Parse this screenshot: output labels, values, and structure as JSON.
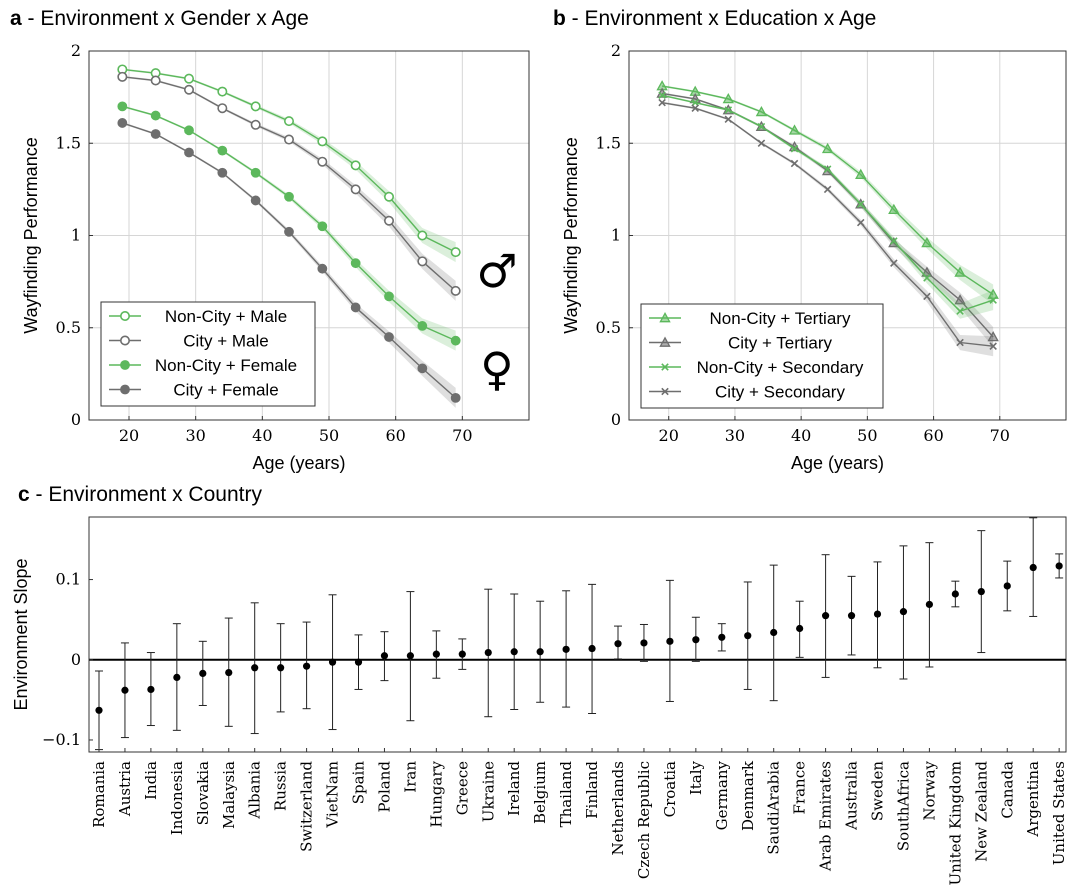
{
  "chart_data": [
    {
      "type": "line",
      "panel_letter": "a",
      "title": "Environment x Gender x Age",
      "xlabel": "Age (years)",
      "ylabel": "Wayfinding Performance",
      "xlim": [
        14,
        80
      ],
      "ylim": [
        0,
        2
      ],
      "xticks": [
        20,
        30,
        40,
        50,
        60,
        70
      ],
      "yticks": [
        0,
        0.5,
        1,
        1.5,
        2
      ],
      "ytick_labels": [
        "0",
        "0.5",
        "1",
        "1.5",
        "2"
      ],
      "grid": true,
      "legend_position": "bottom-left",
      "symbols": [
        "♂",
        "♀"
      ],
      "x": [
        19,
        24,
        29,
        34,
        39,
        44,
        49,
        54,
        59,
        64,
        69
      ],
      "series": [
        {
          "name": "Non-City + Male",
          "color": "#5cb85c",
          "marker": "open-circle",
          "values": [
            1.9,
            1.88,
            1.85,
            1.78,
            1.7,
            1.62,
            1.51,
            1.38,
            1.21,
            1.0,
            0.91
          ]
        },
        {
          "name": "City + Male",
          "color": "#6e6e6e",
          "marker": "open-circle",
          "values": [
            1.86,
            1.84,
            1.79,
            1.69,
            1.6,
            1.52,
            1.4,
            1.25,
            1.08,
            0.86,
            0.7
          ]
        },
        {
          "name": "Non-City + Female",
          "color": "#5cb85c",
          "marker": "filled-circle",
          "values": [
            1.7,
            1.65,
            1.57,
            1.46,
            1.34,
            1.21,
            1.05,
            0.85,
            0.67,
            0.51,
            0.43
          ]
        },
        {
          "name": "City + Female",
          "color": "#6e6e6e",
          "marker": "filled-circle",
          "values": [
            1.61,
            1.55,
            1.45,
            1.34,
            1.19,
            1.02,
            0.82,
            0.61,
            0.45,
            0.28,
            0.12
          ]
        }
      ]
    },
    {
      "type": "line",
      "panel_letter": "b",
      "title": "Environment x Education x Age",
      "xlabel": "Age (years)",
      "ylabel": "Wayfinding Performance",
      "xlim": [
        14,
        80
      ],
      "ylim": [
        0,
        2
      ],
      "xticks": [
        20,
        30,
        40,
        50,
        60,
        70
      ],
      "yticks": [
        0,
        0.5,
        1,
        1.5,
        2
      ],
      "ytick_labels": [
        "0",
        "0.5",
        "1",
        "1.5",
        "2"
      ],
      "grid": true,
      "legend_position": "bottom-left",
      "x": [
        19,
        24,
        29,
        34,
        39,
        44,
        49,
        54,
        59,
        64,
        69
      ],
      "series": [
        {
          "name": "Non-City + Tertiary",
          "color": "#5cb85c",
          "marker": "triangle",
          "values": [
            1.81,
            1.78,
            1.74,
            1.67,
            1.57,
            1.47,
            1.33,
            1.14,
            0.96,
            0.8,
            0.68
          ]
        },
        {
          "name": "City + Tertiary",
          "color": "#6e6e6e",
          "marker": "triangle",
          "values": [
            1.77,
            1.74,
            1.68,
            1.59,
            1.48,
            1.35,
            1.17,
            0.96,
            0.8,
            0.65,
            0.45
          ]
        },
        {
          "name": "Non-City + Secondary",
          "color": "#5cb85c",
          "marker": "cross",
          "values": [
            1.76,
            1.72,
            1.68,
            1.59,
            1.47,
            1.36,
            1.17,
            0.97,
            0.77,
            0.59,
            0.65
          ]
        },
        {
          "name": "City + Secondary",
          "color": "#6e6e6e",
          "marker": "cross",
          "values": [
            1.72,
            1.69,
            1.63,
            1.5,
            1.39,
            1.25,
            1.07,
            0.85,
            0.67,
            0.42,
            0.4
          ]
        }
      ]
    },
    {
      "type": "scatter",
      "panel_letter": "c",
      "title": "Environment x Country",
      "ylabel": "Environment Slope",
      "ylim": [
        -0.115,
        0.178
      ],
      "yticks": [
        -0.1,
        0,
        0.1
      ],
      "ytick_labels": [
        "−0.1",
        "0",
        "0.1"
      ],
      "grid": false,
      "categories": [
        "Romania",
        "Austria",
        "India",
        "Indonesia",
        "Slovakia",
        "Malaysia",
        "Albania",
        "Russia",
        "Switzerland",
        "VietNam",
        "Spain",
        "Poland",
        "Iran",
        "Hungary",
        "Greece",
        "Ukraine",
        "Ireland",
        "Belgium",
        "Thailand",
        "Finland",
        "Netherlands",
        "Czech Republic",
        "Croatia",
        "Italy",
        "Germany",
        "Denmark",
        "SaudiArabia",
        "France",
        "Arab Emirates",
        "Australia",
        "Sweden",
        "SouthAfrica",
        "Norway",
        "United Kingdom",
        "New Zealand",
        "Canada",
        "Argentina",
        "United States"
      ],
      "values": [
        -0.063,
        -0.038,
        -0.037,
        -0.022,
        -0.017,
        -0.016,
        -0.01,
        -0.01,
        -0.008,
        -0.003,
        -0.003,
        0.005,
        0.005,
        0.007,
        0.007,
        0.009,
        0.01,
        0.01,
        0.013,
        0.014,
        0.02,
        0.021,
        0.023,
        0.025,
        0.028,
        0.03,
        0.034,
        0.039,
        0.055,
        0.055,
        0.057,
        0.06,
        0.069,
        0.082,
        0.085,
        0.092,
        0.115,
        0.117
      ],
      "err_low": [
        -0.112,
        -0.097,
        -0.082,
        -0.088,
        -0.057,
        -0.083,
        -0.092,
        -0.065,
        -0.061,
        -0.087,
        -0.037,
        -0.026,
        -0.076,
        -0.023,
        -0.012,
        -0.071,
        -0.062,
        -0.053,
        -0.059,
        -0.067,
        0.001,
        -0.002,
        -0.052,
        -0.002,
        0.011,
        -0.037,
        -0.051,
        0.003,
        -0.022,
        0.006,
        -0.01,
        -0.024,
        -0.009,
        0.066,
        0.009,
        0.061,
        0.054,
        0.102
      ],
      "err_high": [
        -0.014,
        0.021,
        0.009,
        0.045,
        0.023,
        0.052,
        0.071,
        0.045,
        0.047,
        0.081,
        0.031,
        0.035,
        0.085,
        0.036,
        0.026,
        0.088,
        0.082,
        0.073,
        0.086,
        0.094,
        0.042,
        0.044,
        0.099,
        0.053,
        0.045,
        0.097,
        0.118,
        0.073,
        0.131,
        0.104,
        0.122,
        0.142,
        0.146,
        0.098,
        0.161,
        0.123,
        0.177,
        0.132
      ]
    }
  ]
}
